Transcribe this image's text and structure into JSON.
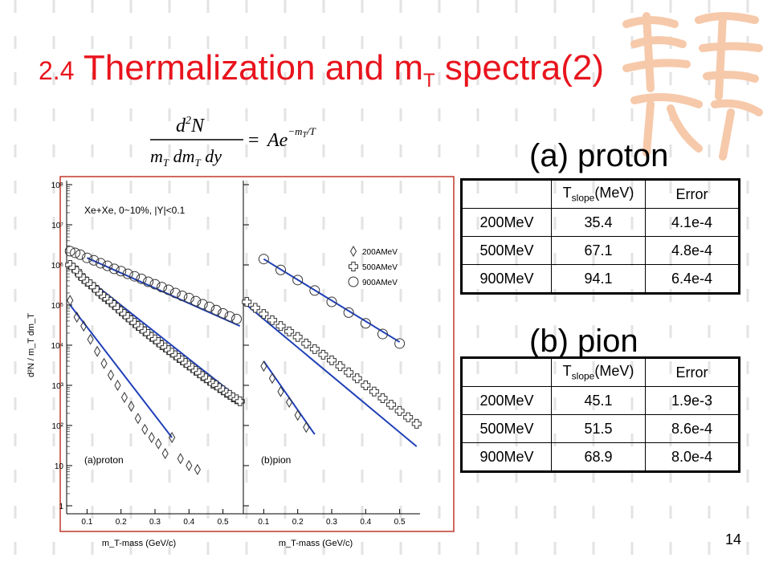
{
  "slide": {
    "title_prefix": "2.4",
    "title_main": "Thermalization and m",
    "title_sub": "T",
    "title_suffix": "spectra(2)",
    "page_number": "14"
  },
  "formula_text": {
    "lhs_num": "d²N",
    "lhs_den": "m_T dm_T dy",
    "rhs": "= Ae^(−m_T/T)"
  },
  "labels": {
    "proton_heading": "(a) proton",
    "pion_heading": "(b) pion"
  },
  "table_header": {
    "blank": "",
    "col1": "T",
    "col1_sub": "slope",
    "col1_unit": "(MeV)",
    "col2": "Error"
  },
  "proton_table": [
    [
      "200MeV",
      "35.4",
      "4.1e-4"
    ],
    [
      "500MeV",
      "67.1",
      "4.8e-4"
    ],
    [
      "900MeV",
      "94.1",
      "6.4e-4"
    ]
  ],
  "pion_table": [
    [
      "200MeV",
      "45.1",
      "1.9e-3"
    ],
    [
      "500MeV",
      "51.5",
      "8.6e-4"
    ],
    [
      "900MeV",
      "68.9",
      "8.0e-4"
    ]
  ],
  "colors": {
    "title": "#e8141d",
    "fit_line": "#1f3fb8",
    "panel_border": "#c0392b",
    "watermark": "#f6c9aa"
  },
  "chart_data": {
    "type": "scatter",
    "yscale": "log",
    "ylim": [
      1,
      100000000
    ],
    "yticks": [
      "1",
      "10",
      "10²",
      "10³",
      "10⁴",
      "10⁵",
      "10⁶",
      "10⁷",
      "10⁸"
    ],
    "ylabel": "d²N / m_T dm_T",
    "system_label": "Xe+Xe, 0~10%, |Y|<0.1",
    "legend_position": "top-right",
    "panels": [
      {
        "label": "(a)proton",
        "xlabel": "m_T-mass (GeV/c)",
        "xlim": [
          0.04,
          0.56
        ],
        "xticks": [
          "0.1",
          "0.2",
          "0.3",
          "0.4",
          "0.5"
        ],
        "series": [
          {
            "name": "200AMeV",
            "marker": "diamond",
            "x": [
              0.05,
              0.07,
              0.09,
              0.11,
              0.13,
              0.15,
              0.17,
              0.19,
              0.21,
              0.23,
              0.25,
              0.27,
              0.29,
              0.31,
              0.33,
              0.35,
              0.375,
              0.4,
              0.425
            ],
            "y": [
              130000,
              50000,
              30000,
              14000,
              7000,
              3500,
              1800,
              1000,
              500,
              300,
              150,
              80,
              50,
              35,
              20,
              50,
              15,
              10,
              8
            ],
            "fit": [
              [
                0.05,
                100000
              ],
              [
                0.35,
                50
              ]
            ]
          },
          {
            "name": "500AMeV",
            "marker": "cross",
            "x": [
              0.05,
              0.06,
              0.07,
              0.08,
              0.09,
              0.1,
              0.11,
              0.12,
              0.13,
              0.14,
              0.15,
              0.16,
              0.17,
              0.18,
              0.19,
              0.2,
              0.21,
              0.22,
              0.23,
              0.24,
              0.25,
              0.26,
              0.27,
              0.28,
              0.29,
              0.3,
              0.31,
              0.32,
              0.33,
              0.34,
              0.35,
              0.36,
              0.37,
              0.38,
              0.39,
              0.4,
              0.41,
              0.42,
              0.43,
              0.44,
              0.45,
              0.46,
              0.47,
              0.48,
              0.49,
              0.5,
              0.51,
              0.52,
              0.53,
              0.54,
              0.55
            ],
            "y": [
              1000000,
              850000,
              700000,
              550000,
              450000,
              380000,
              330000,
              280000,
              230000,
              190000,
              160000,
              140000,
              120000,
              100000,
              85000,
              70000,
              60000,
              50000,
              42000,
              36000,
              30000,
              26000,
              22000,
              19000,
              16000,
              14000,
              12000,
              10000,
              8800,
              7500,
              6500,
              5600,
              4800,
              4200,
              3600,
              3100,
              2700,
              2300,
              2000,
              1700,
              1500,
              1300,
              1100,
              1000,
              850,
              750,
              650,
              580,
              500,
              450,
              400
            ],
            "fit": [
              [
                0.05,
                1000000
              ],
              [
                0.55,
                450
              ]
            ]
          },
          {
            "name": "900AMeV",
            "marker": "circle",
            "x": [
              0.05,
              0.065,
              0.08,
              0.1,
              0.12,
              0.14,
              0.16,
              0.18,
              0.2,
              0.22,
              0.24,
              0.26,
              0.28,
              0.3,
              0.32,
              0.34,
              0.36,
              0.38,
              0.4,
              0.42,
              0.44,
              0.46,
              0.48,
              0.5,
              0.52,
              0.54
            ],
            "y": [
              2200000,
              2000000,
              1800000,
              1500000,
              1300000,
              1100000,
              950000,
              800000,
              700000,
              600000,
              520000,
              450000,
              380000,
              330000,
              280000,
              240000,
              200000,
              170000,
              150000,
              125000,
              105000,
              90000,
              75000,
              62000,
              52000,
              45000
            ],
            "fit": [
              [
                0.1,
                1500000
              ],
              [
                0.55,
                30000
              ]
            ]
          }
        ]
      },
      {
        "label": "(b)pion",
        "xlabel": "m_T-mass (GeV/c)",
        "xlim": [
          0.04,
          0.56
        ],
        "xticks": [
          "0.1",
          "0.2",
          "0.3",
          "0.4",
          "0.5"
        ],
        "series": [
          {
            "name": "200AMeV",
            "marker": "diamond",
            "x": [
              0.1,
              0.125,
              0.15,
              0.175,
              0.2,
              0.225
            ],
            "y": [
              3000,
              1500,
              700,
              380,
              180,
              90
            ],
            "fit": [
              [
                0.1,
                4000
              ],
              [
                0.25,
                60
              ]
            ]
          },
          {
            "name": "500AMeV",
            "marker": "cross",
            "x": [
              0.05,
              0.075,
              0.1,
              0.125,
              0.15,
              0.175,
              0.2,
              0.225,
              0.25,
              0.275,
              0.3,
              0.325,
              0.35,
              0.375,
              0.4,
              0.425,
              0.45,
              0.475,
              0.5,
              0.525,
              0.55
            ],
            "y": [
              120000,
              85000,
              60000,
              42000,
              30000,
              22000,
              16000,
              11000,
              8000,
              5800,
              4200,
              3000,
              2100,
              1500,
              1000,
              700,
              480,
              330,
              230,
              160,
              110
            ],
            "fit": [
              [
                0.05,
                100000
              ],
              [
                0.55,
                30
              ]
            ]
          },
          {
            "name": "900AMeV",
            "marker": "circle",
            "x": [
              0.1,
              0.15,
              0.2,
              0.25,
              0.3,
              0.35,
              0.4,
              0.45,
              0.5
            ],
            "y": [
              1400000,
              750000,
              420000,
              230000,
              120000,
              65000,
              35000,
              19000,
              11000
            ],
            "fit": [
              [
                0.1,
                1400000
              ],
              [
                0.5,
                12000
              ]
            ]
          }
        ]
      }
    ]
  }
}
